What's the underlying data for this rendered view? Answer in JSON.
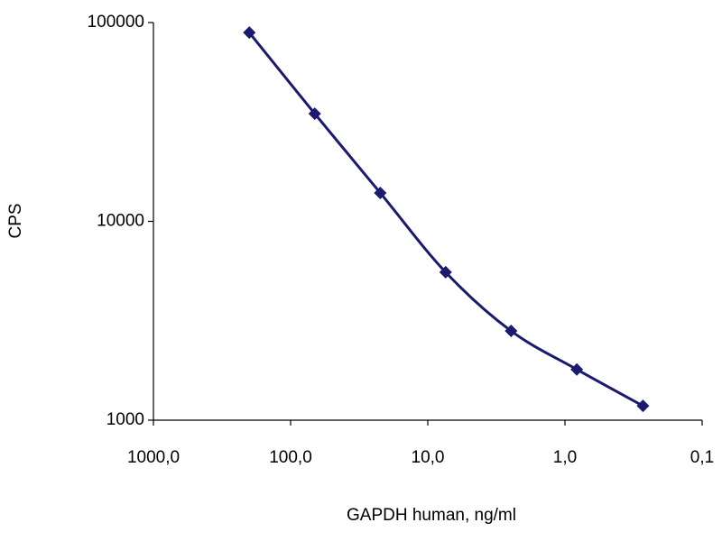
{
  "chart_data": {
    "type": "line",
    "x_label": "GAPDH human, ng/ml",
    "y_label": "CPS",
    "x": [
      200,
      66.7,
      22.2,
      7.41,
      2.47,
      0.82,
      0.27
    ],
    "values": [
      89000,
      34800,
      13900,
      5550,
      2810,
      1800,
      1180
    ],
    "color": "#1a1a6e",
    "marker": "diamond",
    "xscale": "log",
    "yscale": "log",
    "xlim": [
      1000,
      0.1
    ],
    "xticks": [
      {
        "value": 1000,
        "label": "1000,0"
      },
      {
        "value": 100,
        "label": "100,0"
      },
      {
        "value": 10,
        "label": "10,0"
      },
      {
        "value": 1,
        "label": "1,0"
      },
      {
        "value": 0.1,
        "label": "0,1"
      }
    ],
    "ylim": [
      1000,
      100000
    ],
    "yticks": [
      1000,
      10000,
      100000
    ]
  }
}
